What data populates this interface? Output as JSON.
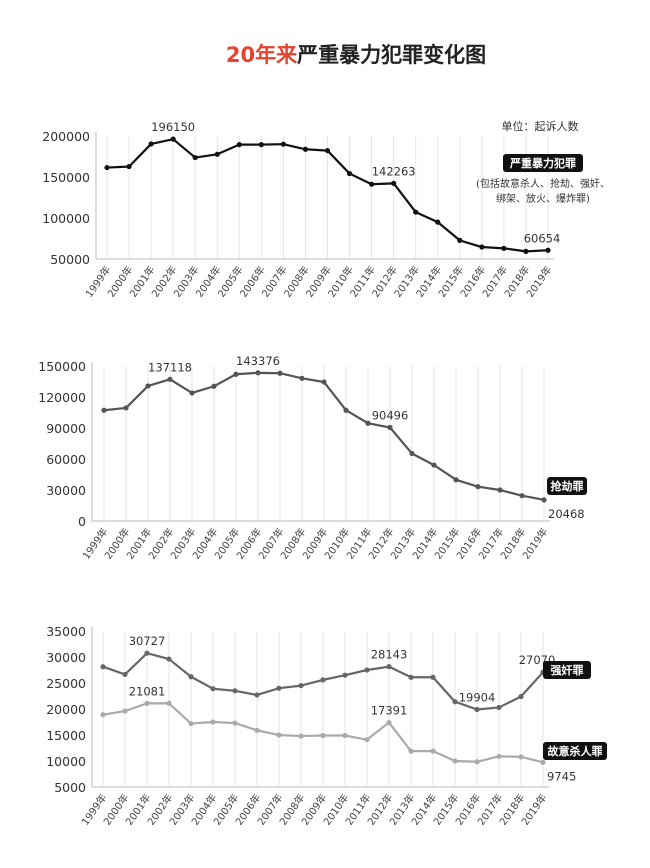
{
  "title": {
    "highlight": "20年来",
    "rest": "严重暴力犯罪变化图",
    "highlight_color": "#e8412c"
  },
  "unit_label": "单位：起诉人数",
  "chart_data": [
    {
      "type": "line",
      "categories": [
        "1999年",
        "2000年",
        "2001年",
        "2002年",
        "2003年",
        "2004年",
        "2005年",
        "2006年",
        "2007年",
        "2008年",
        "2009年",
        "2010年",
        "2011年",
        "2012年",
        "2013年",
        "2014年",
        "2015年",
        "2016年",
        "2017年",
        "2018年",
        "2019年"
      ],
      "ylim": [
        50000,
        200000
      ],
      "yticks": [
        50000,
        100000,
        150000,
        200000
      ],
      "grid": "vertical",
      "series": [
        {
          "name": "严重暴力犯罪",
          "note_lines": [
            "(包括故意杀人、抢劫、强奸、",
            "绑架、放火、爆炸罪)"
          ],
          "color": "#111111",
          "values": [
            161500,
            162700,
            190300,
            196150,
            173700,
            177700,
            189500,
            189500,
            190000,
            183800,
            182200,
            154200,
            141200,
            142263,
            107200,
            95000,
            72700,
            64600,
            63000,
            59300,
            60654
          ],
          "labels": {
            "3": "196150",
            "13": "142263",
            "20": "60654"
          }
        }
      ]
    },
    {
      "type": "line",
      "categories": [
        "1999年",
        "2000年",
        "2001年",
        "2002年",
        "2003年",
        "2004年",
        "2005年",
        "2006年",
        "2007年",
        "2008年",
        "2009年",
        "2010年",
        "2011年",
        "2012年",
        "2013年",
        "2014年",
        "2015年",
        "2016年",
        "2017年",
        "2018年",
        "2019年"
      ],
      "ylim": [
        0,
        150000
      ],
      "yticks": [
        0,
        30000,
        60000,
        90000,
        120000,
        150000
      ],
      "grid": "vertical",
      "series": [
        {
          "name": "抢劫罪",
          "color": "#555555",
          "values": [
            107200,
            109400,
            130700,
            137118,
            123900,
            130400,
            142000,
            143376,
            143000,
            138100,
            134500,
            107200,
            94600,
            90496,
            65300,
            54100,
            39900,
            33200,
            30000,
            24500,
            20468
          ],
          "labels": {
            "3": "137118",
            "7": "143376",
            "13": "90496",
            "20": "20468"
          }
        }
      ]
    },
    {
      "type": "line",
      "categories": [
        "1999年",
        "2000年",
        "2001年",
        "2002年",
        "2003年",
        "2004年",
        "2005年",
        "2006年",
        "2007年",
        "2008年",
        "2009年",
        "2010年",
        "2011年",
        "2012年",
        "2013年",
        "2014年",
        "2015年",
        "2016年",
        "2017年",
        "2018年",
        "2019年"
      ],
      "ylim": [
        5000,
        35000
      ],
      "yticks": [
        5000,
        10000,
        15000,
        20000,
        25000,
        30000,
        35000
      ],
      "grid": "vertical",
      "series": [
        {
          "name": "强奸罪",
          "color": "#666666",
          "values": [
            28130,
            26650,
            30727,
            29600,
            26200,
            23900,
            23500,
            22700,
            24000,
            24500,
            25600,
            26500,
            27500,
            28143,
            26100,
            26100,
            21400,
            19904,
            20300,
            22400,
            27070
          ],
          "labels": {
            "2": "30727",
            "13": "28143",
            "17": "19904",
            "20": "27070"
          }
        },
        {
          "name": "故意杀人罪",
          "color": "#aaaaaa",
          "values": [
            18900,
            19600,
            21081,
            21100,
            17200,
            17500,
            17300,
            15900,
            15000,
            14800,
            14900,
            14900,
            14100,
            17391,
            11900,
            11900,
            10000,
            9850,
            10900,
            10800,
            9745
          ],
          "labels": {
            "2": "21081",
            "13": "17391",
            "20": "9745"
          }
        }
      ]
    }
  ]
}
